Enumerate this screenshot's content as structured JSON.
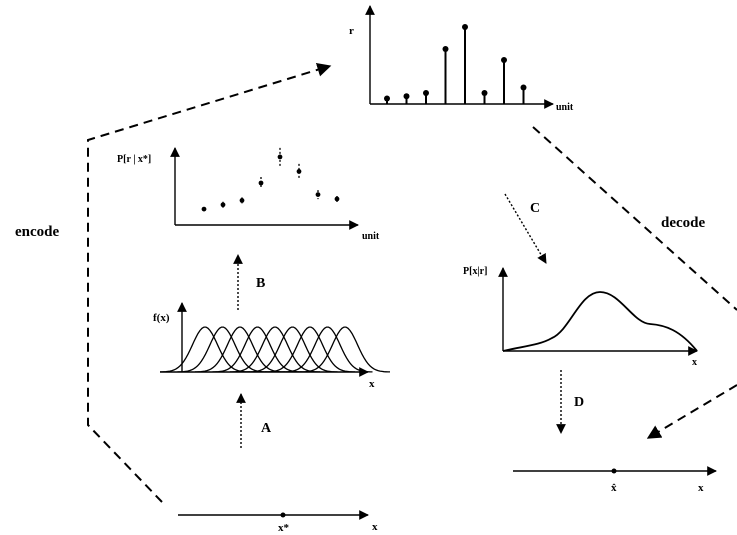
{
  "labels": {
    "encode": "encode",
    "decode": "decode",
    "step_a": "A",
    "step_b": "B",
    "step_c": "C",
    "step_d": "D"
  },
  "stimulus_axis": {
    "x_label": "x",
    "marker_label": "x*"
  },
  "tuning_curves": {
    "y_label": "f(x)",
    "x_label": "x",
    "count": 9
  },
  "likelihood_plot": {
    "y_label": "P[r | x*]",
    "x_label": "unit",
    "mean_values": [
      2,
      5,
      8,
      20,
      38,
      28,
      12,
      9
    ],
    "spread": [
      1,
      2,
      2,
      4,
      6,
      5,
      3,
      2
    ]
  },
  "response_plot": {
    "y_label": "r",
    "x_label": "unit",
    "values": [
      5,
      7,
      10,
      50,
      70,
      10,
      40,
      15
    ]
  },
  "posterior_plot": {
    "y_label": "P[x|r]",
    "x_label": "x"
  },
  "estimate_axis": {
    "x_label": "x",
    "marker_label": "x̂"
  }
}
